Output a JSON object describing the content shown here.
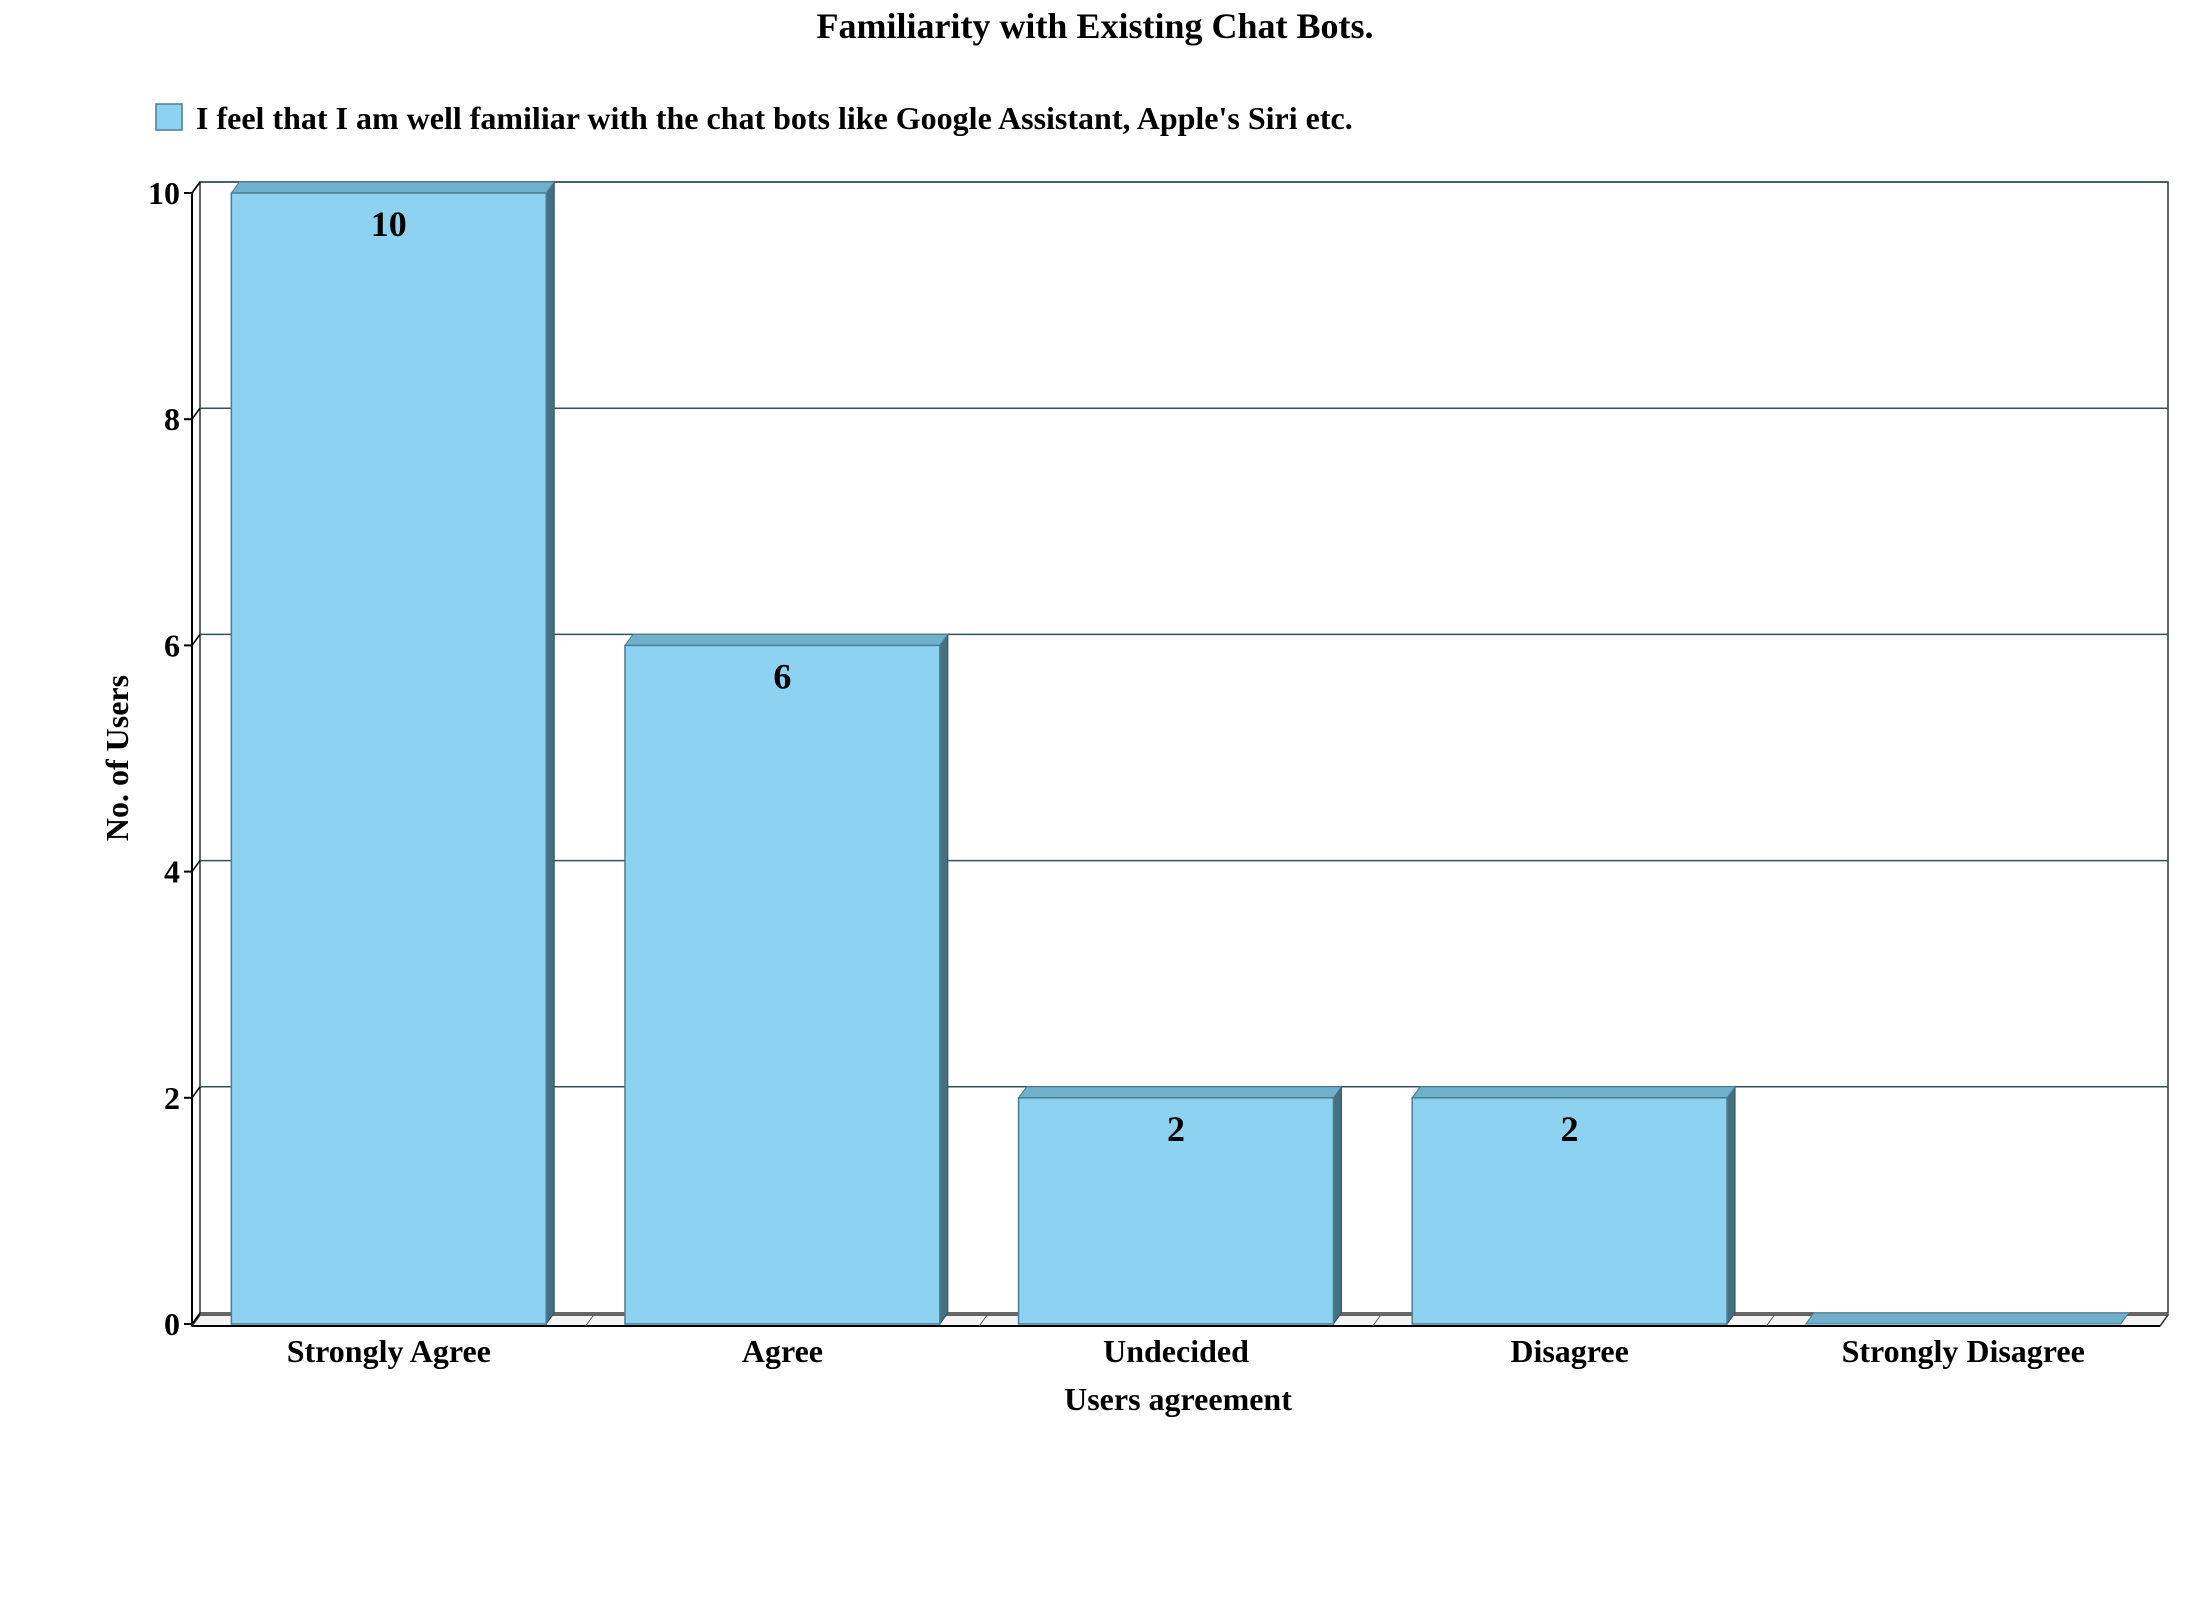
{
  "chart_data": {
    "type": "bar",
    "title": "Familiarity with Existing Chat Bots.",
    "xlabel": "Users agreement",
    "ylabel": "No. of  Users",
    "categories": [
      "Strongly Agree",
      "Agree",
      "Undecided",
      "Disagree",
      "Strongly Disagree"
    ],
    "series": [
      {
        "name": "I feel that I am well familiar with the chat bots like Google Assistant, Apple's Siri etc.",
        "values": [
          10,
          6,
          2,
          2,
          0
        ]
      }
    ],
    "data_labels": [
      "10",
      "6",
      "2",
      "2",
      ""
    ],
    "yticks": [
      0,
      2,
      4,
      6,
      8,
      10
    ],
    "ylim": [
      0,
      10
    ],
    "grid": true,
    "legend_position": "top-left",
    "colors": {
      "bar_front": "#8dd2f1",
      "bar_top": "#6fb0cc",
      "bar_side": "#46707f",
      "gridline": "#34505c",
      "axis": "#000000"
    }
  }
}
